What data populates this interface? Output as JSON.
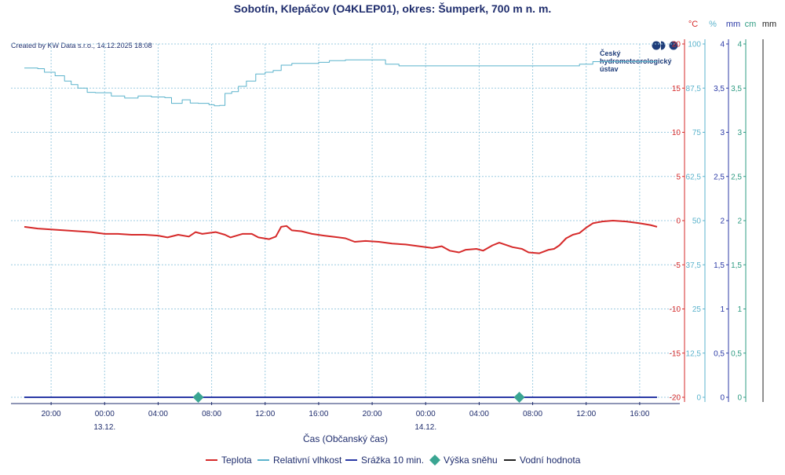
{
  "chart_data": {
    "type": "line",
    "title": "Sobotín, Klepáčov (O4KLEP01), okres: Šumperk, 700 m n. m.",
    "credit": "Created by KW Data s.r.o., 14.12.2025 18:08",
    "logo": {
      "line1": "Český",
      "line2": "hydrometeorologický",
      "line3": "ústav"
    },
    "xlabel": "Čas (Občanský čas)",
    "x_ticks": [
      {
        "hour": 2,
        "label": "20:00",
        "date": ""
      },
      {
        "hour": 6,
        "label": "00:00",
        "date": "13.12."
      },
      {
        "hour": 10,
        "label": "04:00",
        "date": ""
      },
      {
        "hour": 14,
        "label": "08:00",
        "date": ""
      },
      {
        "hour": 18,
        "label": "12:00",
        "date": ""
      },
      {
        "hour": 22,
        "label": "16:00",
        "date": ""
      },
      {
        "hour": 26,
        "label": "20:00",
        "date": ""
      },
      {
        "hour": 30,
        "label": "00:00",
        "date": "14.12."
      },
      {
        "hour": 34,
        "label": "04:00",
        "date": ""
      },
      {
        "hour": 38,
        "label": "08:00",
        "date": ""
      },
      {
        "hour": 42,
        "label": "12:00",
        "date": ""
      },
      {
        "hour": 46,
        "label": "16:00",
        "date": ""
      }
    ],
    "xlim_hours": [
      -1,
      49
    ],
    "axes": [
      {
        "unit": "°C",
        "color": "#d62a2a",
        "ylim": [
          -20,
          20
        ],
        "ticks": [
          "20",
          "15",
          "10",
          "5",
          "0",
          "-5",
          "-10",
          "-15",
          "-20"
        ]
      },
      {
        "unit": "%",
        "color": "#5bb3cc",
        "ylim": [
          0,
          100
        ],
        "ticks": [
          "100",
          "87,5",
          "75",
          "62,5",
          "50",
          "37,5",
          "25",
          "12,5",
          "0"
        ]
      },
      {
        "unit": "mm",
        "color": "#2b3aa6",
        "ylim": [
          0,
          4
        ],
        "ticks": [
          "4",
          "3,5",
          "3",
          "2,5",
          "2",
          "1,5",
          "1",
          "0,5",
          "0"
        ]
      },
      {
        "unit": "cm",
        "color": "#2e9b82",
        "ylim": [
          0,
          4
        ],
        "ticks": [
          "4",
          "3,5",
          "3",
          "2,5",
          "2",
          "1,5",
          "1",
          "0,5",
          "0"
        ]
      },
      {
        "unit": "mm",
        "color": "#222222",
        "ylim": [
          0,
          4
        ],
        "ticks": []
      }
    ],
    "legend": [
      {
        "name": "Teplota",
        "color": "#d62a2a",
        "marker": "line"
      },
      {
        "name": "Relativní vlhkost",
        "color": "#5bb3cc",
        "marker": "line"
      },
      {
        "name": "Srážka 10 min.",
        "color": "#2b3aa6",
        "marker": "line"
      },
      {
        "name": "Výška sněhu",
        "color": "#3aa592",
        "marker": "diamond"
      },
      {
        "name": "Vodní hodnota",
        "color": "#222222",
        "marker": "line"
      }
    ],
    "series": [
      {
        "name": "Teplota",
        "axis": 0,
        "points": [
          [
            0,
            -0.7
          ],
          [
            1,
            -0.9
          ],
          [
            2,
            -1.0
          ],
          [
            3,
            -1.1
          ],
          [
            4,
            -1.2
          ],
          [
            5,
            -1.3
          ],
          [
            6,
            -1.5
          ],
          [
            7,
            -1.5
          ],
          [
            8,
            -1.6
          ],
          [
            9,
            -1.6
          ],
          [
            10,
            -1.7
          ],
          [
            10.7,
            -1.9
          ],
          [
            11.5,
            -1.6
          ],
          [
            12.3,
            -1.8
          ],
          [
            12.8,
            -1.3
          ],
          [
            13.3,
            -1.5
          ],
          [
            14.3,
            -1.3
          ],
          [
            15,
            -1.6
          ],
          [
            15.4,
            -1.9
          ],
          [
            16.3,
            -1.5
          ],
          [
            17,
            -1.5
          ],
          [
            17.5,
            -1.9
          ],
          [
            18.3,
            -2.1
          ],
          [
            18.8,
            -1.8
          ],
          [
            19.2,
            -0.7
          ],
          [
            19.6,
            -0.6
          ],
          [
            20,
            -1.1
          ],
          [
            20.7,
            -1.2
          ],
          [
            21.5,
            -1.5
          ],
          [
            22.4,
            -1.7
          ],
          [
            23.5,
            -1.9
          ],
          [
            24,
            -2.0
          ],
          [
            24.7,
            -2.4
          ],
          [
            25.5,
            -2.3
          ],
          [
            26.5,
            -2.4
          ],
          [
            27.5,
            -2.6
          ],
          [
            28.5,
            -2.7
          ],
          [
            29.5,
            -2.9
          ],
          [
            30.5,
            -3.1
          ],
          [
            31.2,
            -2.9
          ],
          [
            31.8,
            -3.4
          ],
          [
            32.5,
            -3.6
          ],
          [
            33,
            -3.3
          ],
          [
            33.8,
            -3.2
          ],
          [
            34.3,
            -3.4
          ],
          [
            35,
            -2.8
          ],
          [
            35.5,
            -2.5
          ],
          [
            36.5,
            -3.0
          ],
          [
            37.2,
            -3.2
          ],
          [
            37.7,
            -3.6
          ],
          [
            38.5,
            -3.7
          ],
          [
            39.2,
            -3.3
          ],
          [
            39.6,
            -3.2
          ],
          [
            40,
            -2.8
          ],
          [
            40.5,
            -2.0
          ],
          [
            41,
            -1.6
          ],
          [
            41.5,
            -1.4
          ],
          [
            42,
            -0.8
          ],
          [
            42.5,
            -0.3
          ],
          [
            43.2,
            -0.1
          ],
          [
            44,
            -0.0
          ],
          [
            45,
            -0.1
          ],
          [
            46,
            -0.3
          ],
          [
            46.8,
            -0.5
          ],
          [
            47.3,
            -0.7
          ]
        ]
      },
      {
        "name": "Relativní vlhkost",
        "axis": 1,
        "points": [
          [
            0,
            93.2
          ],
          [
            1,
            93.0
          ],
          [
            1.5,
            92.0
          ],
          [
            2.3,
            91.0
          ],
          [
            3,
            89.5
          ],
          [
            3.5,
            88.5
          ],
          [
            4,
            87.5
          ],
          [
            4.7,
            86.3
          ],
          [
            5.3,
            86.2
          ],
          [
            6.5,
            85.3
          ],
          [
            7.5,
            84.7
          ],
          [
            8.5,
            85.3
          ],
          [
            9.5,
            85.0
          ],
          [
            10.5,
            84.8
          ],
          [
            11,
            83.2
          ],
          [
            11.8,
            84.2
          ],
          [
            12.4,
            83.3
          ],
          [
            13,
            83.2
          ],
          [
            13.8,
            82.8
          ],
          [
            14.2,
            82.5
          ],
          [
            14.6,
            82.6
          ],
          [
            15,
            86.0
          ],
          [
            15.5,
            86.5
          ],
          [
            16,
            88.0
          ],
          [
            16.6,
            89.5
          ],
          [
            17.3,
            91.5
          ],
          [
            18,
            92.0
          ],
          [
            18.6,
            92.5
          ],
          [
            19.2,
            94.0
          ],
          [
            20,
            94.5
          ],
          [
            21,
            94.5
          ],
          [
            22,
            94.8
          ],
          [
            22.8,
            95.3
          ],
          [
            24,
            95.5
          ],
          [
            25.5,
            95.5
          ],
          [
            26.5,
            95.5
          ],
          [
            27,
            94.3
          ],
          [
            28,
            93.8
          ],
          [
            36,
            93.8
          ],
          [
            40,
            93.8
          ],
          [
            41.5,
            94.3
          ],
          [
            42.5,
            95.0
          ],
          [
            47.3,
            95.0
          ]
        ]
      },
      {
        "name": "Srážka 10 min.",
        "axis": 2,
        "points": [
          [
            0,
            0
          ],
          [
            47.3,
            0
          ]
        ]
      },
      {
        "name": "Výška sněhu",
        "axis": 3,
        "marker": "diamond",
        "points": [
          [
            13,
            0
          ],
          [
            37,
            0
          ]
        ]
      }
    ]
  }
}
